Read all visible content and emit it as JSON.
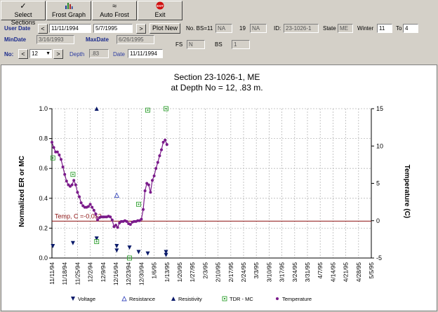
{
  "toolbar": {
    "select_sections": "Select Sections",
    "frost_graph": "Frost Graph",
    "auto_frost": "Auto Frost",
    "exit": "Exit",
    "exit_badge": "EXIT"
  },
  "form": {
    "user_date_label": "User Date",
    "start_date": "11/11/1994",
    "end_date": "5/7/1995",
    "plot_new": "Plot New",
    "min_date_label": "MinDate",
    "min_date": "3/16/1993",
    "max_date_label": "MaxDate",
    "max_date": "6/26/1995",
    "no_label": "No:",
    "no_value": "12",
    "depth_label": "Depth",
    "depth_value": ".83",
    "date_label": "Date",
    "date_value": "11/11/1994",
    "no_bs_label": "No. BS=11",
    "no_bs_value": "NA",
    "nineteen": "19",
    "nineteen_value": "NA",
    "fs_label": "FS",
    "fs_value": "N",
    "bs_label": "BS",
    "bs_value": "1",
    "id_label": "ID:",
    "id_value": "23-1026-1",
    "state_label": "State",
    "state_value": "ME",
    "winter_label": "Winter",
    "winter_value": "11",
    "to_label": "To",
    "to_value": "4"
  },
  "chart_data": {
    "type": "line",
    "title": "Section 23-1026-1, ME",
    "subtitle": "at Depth No = 12, .83 m.",
    "ylabel": "Normalized ER or MC",
    "y2label": "Temperature (C)",
    "ylim": [
      0,
      1
    ],
    "y2lim": [
      -5,
      15
    ],
    "yticks": [
      "0.0",
      "0.2",
      "0.4",
      "0.6",
      "0.8",
      "1.0"
    ],
    "y2ticks": [
      "-5",
      "0",
      "5",
      "10",
      "15"
    ],
    "xticks": [
      "11/11/94",
      "11/18/94",
      "11/25/94",
      "12/2/94",
      "12/9/94",
      "12/16/94",
      "12/23/94",
      "12/30/94",
      "1/6/95",
      "1/13/95",
      "1/20/95",
      "1/27/95",
      "2/3/95",
      "2/10/95",
      "2/17/95",
      "2/24/95",
      "3/3/95",
      "3/10/95",
      "3/17/95",
      "3/24/95",
      "3/31/95",
      "4/7/95",
      "4/14/95",
      "4/21/95",
      "4/28/95",
      "5/5/95"
    ],
    "grid": true,
    "threshold": {
      "label": "Temp, C =-0.053",
      "value": -0.053,
      "color": "#8b1010"
    },
    "legend": [
      "Voltage",
      "Resistance",
      "Resistivity",
      "TDR - MC",
      "Temperature"
    ],
    "legend_position": "bottom",
    "series": [
      {
        "name": "Voltage",
        "marker": "triangle-down",
        "color": "#0a1a6a",
        "points": [
          [
            0.5,
            0.08
          ],
          [
            11.5,
            0.1
          ],
          [
            24.5,
            0.13
          ],
          [
            35.5,
            0.08
          ],
          [
            35.5,
            0.05
          ],
          [
            42.5,
            0.07
          ],
          [
            47.5,
            0.04
          ],
          [
            52.5,
            0.03
          ],
          [
            62.5,
            0.04
          ],
          [
            62.5,
            0.02
          ]
        ]
      },
      {
        "name": "Resistance",
        "marker": "triangle-up-open",
        "color": "#4050c0",
        "points": [
          [
            35.5,
            0.42
          ]
        ]
      },
      {
        "name": "Resistivity",
        "marker": "triangle-up",
        "color": "#0a1a6a",
        "points": [
          [
            24.5,
            1.0
          ]
        ]
      },
      {
        "name": "TDR - MC",
        "marker": "square-open",
        "color": "#2fa02f",
        "points": [
          [
            0.5,
            0.67
          ],
          [
            11.5,
            0.56
          ],
          [
            24.5,
            0.11
          ],
          [
            42.5,
            0.0
          ],
          [
            47.5,
            0.36
          ],
          [
            52.5,
            0.99
          ],
          [
            62.5,
            1.0
          ]
        ]
      },
      {
        "name": "Temperature",
        "marker": "circle",
        "color": "#7a1a8a",
        "x": [
          0,
          1,
          2,
          3,
          4,
          5,
          6,
          7,
          8,
          9,
          10,
          11,
          12,
          13,
          14,
          15,
          16,
          17,
          18,
          19,
          20,
          21,
          22,
          23,
          24,
          25,
          26,
          27,
          28,
          29,
          30,
          31,
          32,
          33,
          34,
          35,
          36,
          37,
          38,
          39,
          40,
          41,
          42,
          43,
          44,
          45,
          46,
          47,
          48,
          49,
          50,
          51,
          52,
          53,
          54,
          55,
          56,
          57,
          58,
          59,
          60,
          61,
          62,
          63
        ],
        "values": [
          10.5,
          9.8,
          9.2,
          9.2,
          8.8,
          8.2,
          7.2,
          6.2,
          5.3,
          4.8,
          4.6,
          4.8,
          5.4,
          4.8,
          3.8,
          3.2,
          2.4,
          2.0,
          1.8,
          1.8,
          1.9,
          2.2,
          1.8,
          1.4,
          0.9,
          0.1,
          0.4,
          0.5,
          0.5,
          0.5,
          0.5,
          0.6,
          0.5,
          0.1,
          -0.8,
          -0.6,
          -0.9,
          -0.3,
          -0.1,
          -0.1,
          0.0,
          -0.1,
          -0.4,
          -0.5,
          -0.2,
          -0.1,
          -0.1,
          0.0,
          0.0,
          0.2,
          1.5,
          4.0,
          5.0,
          4.8,
          3.8,
          5.4,
          6.0,
          7.0,
          7.8,
          8.7,
          9.5,
          10.5,
          10.8,
          10.2
        ]
      }
    ]
  }
}
